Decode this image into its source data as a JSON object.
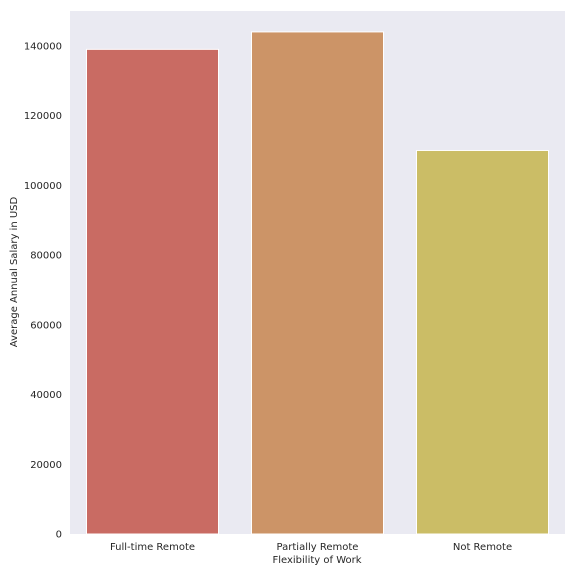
{
  "chart_data": {
    "type": "bar",
    "title": "",
    "xlabel": "Flexibility of Work",
    "ylabel": "Average Annual Salary in USD",
    "categories": [
      "Full-time Remote",
      "Partially Remote",
      "Not Remote"
    ],
    "values": [
      139000,
      144000,
      110000
    ],
    "ylim": [
      0,
      150000
    ],
    "yticks": [
      0,
      20000,
      40000,
      60000,
      80000,
      100000,
      120000,
      140000
    ],
    "ytick_labels": [
      "0",
      "20000",
      "40000",
      "60000",
      "80000",
      "100000",
      "120000",
      "140000"
    ],
    "colors": [
      "#c96b63",
      "#cc9467",
      "#cbbd66"
    ],
    "background_color": "#eaeaf2",
    "grid": false,
    "legend": "none"
  }
}
